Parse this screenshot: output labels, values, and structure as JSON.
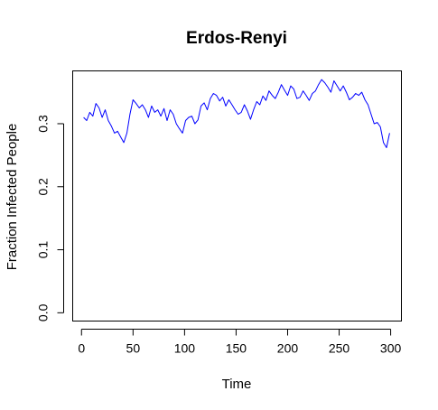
{
  "chart_data": {
    "type": "line",
    "title": "Erdos-Renyi",
    "xlabel": "Time",
    "ylabel": "Fraction Infected People",
    "xlim": [
      -9,
      310
    ],
    "ylim": [
      -0.0124,
      0.3845
    ],
    "xticks": [
      0,
      50,
      100,
      150,
      200,
      250,
      300
    ],
    "yticks": [
      0.0,
      0.1,
      0.2,
      0.3
    ],
    "ytick_labels": [
      "0.0",
      "0.1",
      "0.2",
      "0.3"
    ],
    "grid": false,
    "legend": "none",
    "series": [
      {
        "color": "#0000ff",
        "x": [
          2,
          5,
          8,
          11,
          14,
          17,
          20,
          23,
          26,
          29,
          32,
          35,
          38,
          41,
          44,
          47,
          50,
          53,
          56,
          59,
          62,
          65,
          68,
          71,
          74,
          77,
          80,
          83,
          86,
          89,
          92,
          95,
          98,
          101,
          104,
          107,
          110,
          113,
          116,
          119,
          122,
          125,
          128,
          131,
          134,
          137,
          140,
          143,
          146,
          149,
          152,
          155,
          158,
          161,
          164,
          167,
          170,
          173,
          176,
          179,
          182,
          185,
          188,
          191,
          194,
          197,
          200,
          203,
          206,
          209,
          212,
          215,
          218,
          221,
          224,
          227,
          230,
          233,
          236,
          239,
          242,
          245,
          248,
          251,
          254,
          257,
          260,
          263,
          266,
          269,
          272,
          275,
          278,
          281,
          284,
          287,
          290,
          293,
          296,
          299
        ],
        "y": [
          0.31,
          0.305,
          0.318,
          0.312,
          0.332,
          0.325,
          0.31,
          0.322,
          0.305,
          0.296,
          0.285,
          0.288,
          0.279,
          0.27,
          0.285,
          0.315,
          0.338,
          0.332,
          0.325,
          0.33,
          0.322,
          0.31,
          0.328,
          0.318,
          0.322,
          0.312,
          0.324,
          0.305,
          0.322,
          0.315,
          0.3,
          0.292,
          0.285,
          0.305,
          0.31,
          0.312,
          0.3,
          0.306,
          0.328,
          0.333,
          0.322,
          0.34,
          0.348,
          0.345,
          0.336,
          0.342,
          0.328,
          0.338,
          0.33,
          0.322,
          0.315,
          0.318,
          0.33,
          0.32,
          0.307,
          0.322,
          0.335,
          0.33,
          0.344,
          0.337,
          0.352,
          0.345,
          0.34,
          0.35,
          0.362,
          0.353,
          0.345,
          0.36,
          0.355,
          0.34,
          0.342,
          0.352,
          0.345,
          0.337,
          0.348,
          0.352,
          0.362,
          0.37,
          0.365,
          0.358,
          0.35,
          0.368,
          0.36,
          0.352,
          0.36,
          0.35,
          0.338,
          0.342,
          0.348,
          0.345,
          0.35,
          0.338,
          0.33,
          0.315,
          0.3,
          0.302,
          0.295,
          0.27,
          0.262,
          0.285
        ]
      }
    ]
  }
}
